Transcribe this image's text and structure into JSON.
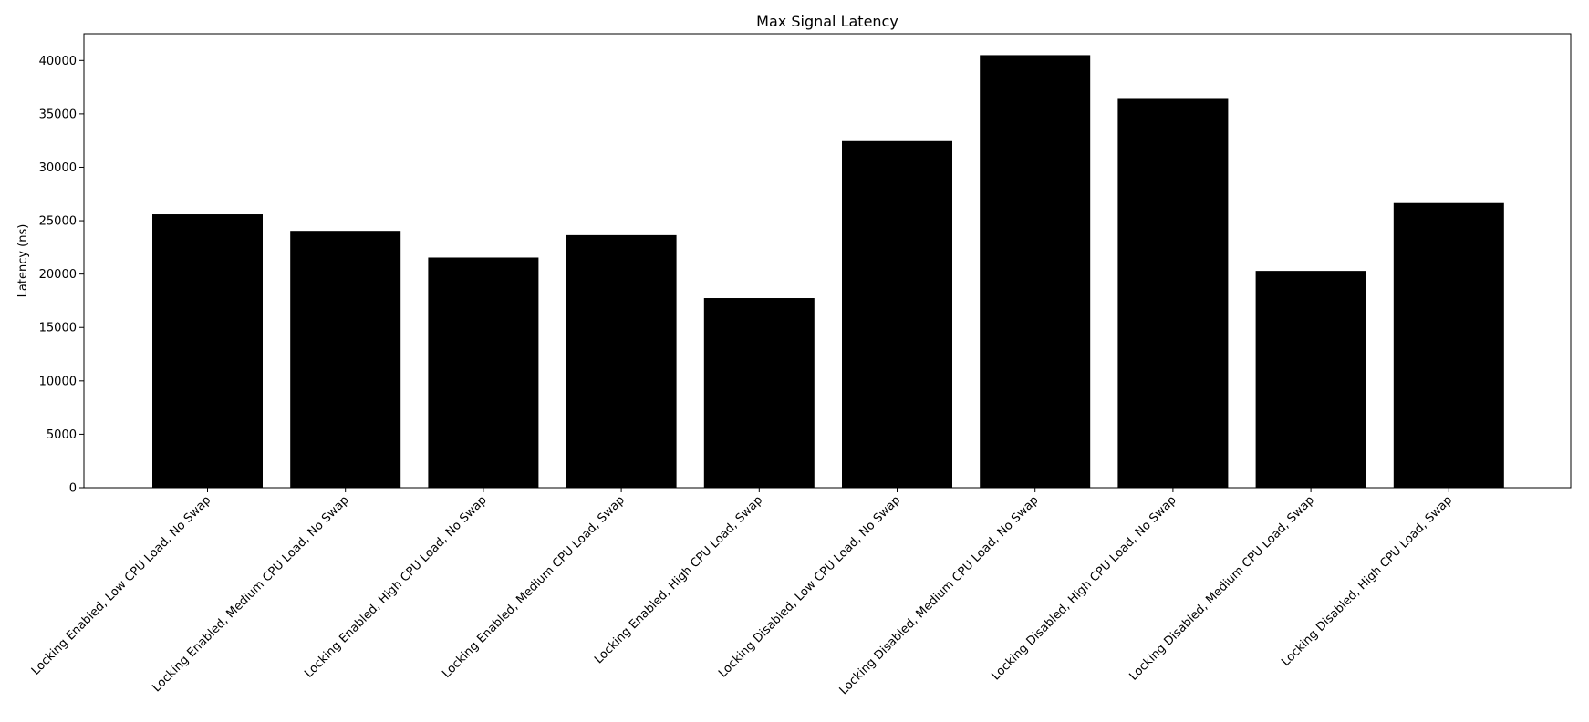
{
  "chart_data": {
    "type": "bar",
    "title": "Max Signal Latency",
    "xlabel": "",
    "ylabel": "Latency (ns)",
    "categories": [
      "Locking Enabled, Low CPU Load, No Swap",
      "Locking Enabled, Medium CPU Load, No Swap",
      "Locking Enabled, High CPU Load, No Swap",
      "Locking Enabled, Medium CPU Load, Swap",
      "Locking Enabled, High CPU Load, Swap",
      "Locking Disabled, Low CPU Load, No Swap",
      "Locking Disabled, Medium CPU Load, No Swap",
      "Locking Disabled, High CPU Load, No Swap",
      "Locking Disabled, Medium CPU Load, Swap",
      "Locking Disabled, High CPU Load, Swap"
    ],
    "values": [
      25600,
      24050,
      21550,
      23650,
      17750,
      32450,
      40500,
      36400,
      20300,
      26650
    ],
    "ylim": [
      0,
      42500
    ],
    "yticks": [
      0,
      5000,
      10000,
      15000,
      20000,
      25000,
      30000,
      35000,
      40000
    ],
    "grid": false,
    "legend": "none",
    "bar_color": "#000000"
  }
}
